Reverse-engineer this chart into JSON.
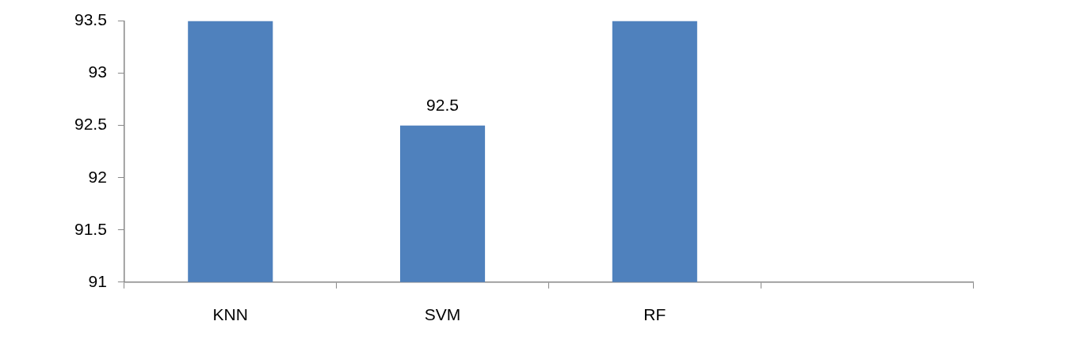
{
  "chart_data": {
    "type": "bar",
    "categories": [
      "KNN",
      "SVM",
      "RF",
      null
    ],
    "values": [
      93.5,
      92.5,
      93.5,
      null
    ],
    "value_labels": [
      null,
      "92.5",
      null,
      null
    ],
    "color": "#4f81bd",
    "ylim": [
      91,
      93.5
    ],
    "yticks": [
      91,
      91.5,
      92,
      92.5,
      93,
      93.5
    ],
    "grid": false,
    "legend": false
  }
}
